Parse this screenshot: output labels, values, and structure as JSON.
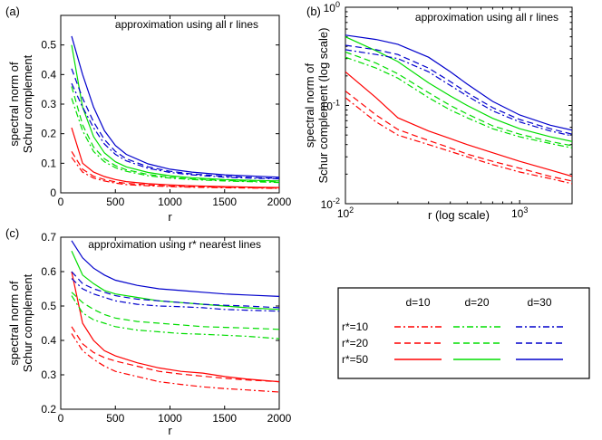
{
  "chart_data": [
    {
      "type": "line",
      "panel_label": "(a)",
      "title": "approximation using all r lines",
      "xlabel": "r",
      "ylabel": [
        "spectral norm of",
        "Schur complement"
      ],
      "xlim": [
        0,
        2000
      ],
      "ylim": [
        0,
        0.6
      ],
      "xscale": "linear",
      "yscale": "linear",
      "xticks": [
        0,
        500,
        1000,
        1500,
        2000
      ],
      "xtick_labels": [
        "0",
        "500",
        "1000",
        "1500",
        "2000"
      ],
      "yticks": [
        0,
        0.1,
        0.2,
        0.3,
        0.4,
        0.5
      ],
      "ytick_labels": [
        "0",
        "0.1",
        "0.2",
        "0.3",
        "0.4",
        "0.5"
      ],
      "x": [
        100,
        200,
        300,
        400,
        500,
        600,
        800,
        1000,
        1200,
        1500,
        1800,
        2000
      ],
      "series": [
        {
          "name": "d=10, r*=10",
          "color": "#ff0000",
          "dash": "dashdot",
          "values": [
            0.12,
            0.07,
            0.05,
            0.04,
            0.033,
            0.028,
            0.024,
            0.021,
            0.019,
            0.017,
            0.016,
            0.015
          ]
        },
        {
          "name": "d=10, r*=20",
          "color": "#ff0000",
          "dash": "dashed",
          "values": [
            0.14,
            0.08,
            0.056,
            0.045,
            0.037,
            0.032,
            0.027,
            0.023,
            0.021,
            0.019,
            0.017,
            0.016
          ]
        },
        {
          "name": "d=10, r*=50",
          "color": "#ff0000",
          "dash": "solid",
          "values": [
            0.22,
            0.1,
            0.07,
            0.055,
            0.045,
            0.038,
            0.031,
            0.027,
            0.024,
            0.021,
            0.019,
            0.018
          ]
        },
        {
          "name": "d=20, r*=10",
          "color": "#00dd00",
          "dash": "dashdot",
          "values": [
            0.32,
            0.21,
            0.14,
            0.105,
            0.085,
            0.073,
            0.058,
            0.05,
            0.045,
            0.04,
            0.037,
            0.035
          ]
        },
        {
          "name": "d=20, r*=20",
          "color": "#00dd00",
          "dash": "dashed",
          "values": [
            0.36,
            0.23,
            0.155,
            0.115,
            0.092,
            0.078,
            0.062,
            0.053,
            0.047,
            0.042,
            0.039,
            0.037
          ]
        },
        {
          "name": "d=20, r*=50",
          "color": "#00dd00",
          "dash": "solid",
          "values": [
            0.5,
            0.29,
            0.19,
            0.135,
            0.105,
            0.088,
            0.069,
            0.058,
            0.051,
            0.045,
            0.042,
            0.04
          ]
        },
        {
          "name": "d=30, r*=10",
          "color": "#0000cc",
          "dash": "dashdot",
          "values": [
            0.37,
            0.29,
            0.22,
            0.165,
            0.13,
            0.108,
            0.083,
            0.069,
            0.061,
            0.053,
            0.049,
            0.047
          ]
        },
        {
          "name": "d=30, r*=20",
          "color": "#0000cc",
          "dash": "dashed",
          "values": [
            0.42,
            0.32,
            0.24,
            0.18,
            0.14,
            0.115,
            0.088,
            0.073,
            0.064,
            0.056,
            0.051,
            0.049
          ]
        },
        {
          "name": "d=30, r*=50",
          "color": "#0000cc",
          "dash": "solid",
          "values": [
            0.53,
            0.4,
            0.29,
            0.21,
            0.16,
            0.13,
            0.098,
            0.08,
            0.07,
            0.061,
            0.056,
            0.053
          ]
        }
      ]
    },
    {
      "type": "line",
      "panel_label": "(b)",
      "title": "approximation using all r lines",
      "xlabel": "r (log scale)",
      "ylabel": [
        "spectral norm of",
        "Schur complement (log scale)"
      ],
      "xlim": [
        100,
        2000
      ],
      "ylim": [
        0.01,
        1
      ],
      "xscale": "log",
      "yscale": "log",
      "xticks": [
        100,
        1000
      ],
      "xtick_labels": [
        [
          "10",
          "2"
        ],
        [
          "10",
          "3"
        ]
      ],
      "yticks": [
        0.01,
        0.1,
        1
      ],
      "ytick_labels": [
        [
          "10",
          "-2"
        ],
        [
          "10",
          "-1"
        ],
        [
          "10",
          "0"
        ]
      ],
      "x": [
        100,
        150,
        200,
        300,
        400,
        500,
        700,
        1000,
        1500,
        2000
      ],
      "series": [
        {
          "name": "d=10, r*=10",
          "color": "#ff0000",
          "dash": "dashdot",
          "values": [
            0.12,
            0.068,
            0.05,
            0.04,
            0.034,
            0.03,
            0.025,
            0.021,
            0.018,
            0.016
          ]
        },
        {
          "name": "d=10, r*=20",
          "color": "#ff0000",
          "dash": "dashed",
          "values": [
            0.14,
            0.08,
            0.057,
            0.044,
            0.037,
            0.032,
            0.027,
            0.023,
            0.019,
            0.017
          ]
        },
        {
          "name": "d=10, r*=50",
          "color": "#ff0000",
          "dash": "solid",
          "values": [
            0.22,
            0.12,
            0.075,
            0.055,
            0.046,
            0.04,
            0.033,
            0.027,
            0.022,
            0.019
          ]
        },
        {
          "name": "d=20, r*=10",
          "color": "#00dd00",
          "dash": "dashdot",
          "values": [
            0.31,
            0.24,
            0.19,
            0.12,
            0.09,
            0.075,
            0.058,
            0.048,
            0.041,
            0.037
          ]
        },
        {
          "name": "d=20, r*=20",
          "color": "#00dd00",
          "dash": "dashed",
          "values": [
            0.35,
            0.27,
            0.21,
            0.135,
            0.1,
            0.082,
            0.062,
            0.051,
            0.043,
            0.039
          ]
        },
        {
          "name": "d=20, r*=50",
          "color": "#00dd00",
          "dash": "solid",
          "values": [
            0.5,
            0.36,
            0.28,
            0.17,
            0.125,
            0.1,
            0.074,
            0.058,
            0.048,
            0.043
          ]
        },
        {
          "name": "d=30, r*=10",
          "color": "#0000cc",
          "dash": "dashdot",
          "values": [
            0.37,
            0.33,
            0.3,
            0.22,
            0.16,
            0.125,
            0.088,
            0.068,
            0.055,
            0.049
          ]
        },
        {
          "name": "d=30, r*=20",
          "color": "#0000cc",
          "dash": "dashed",
          "values": [
            0.41,
            0.37,
            0.33,
            0.24,
            0.175,
            0.135,
            0.095,
            0.072,
            0.058,
            0.051
          ]
        },
        {
          "name": "d=30, r*=50",
          "color": "#0000cc",
          "dash": "solid",
          "values": [
            0.52,
            0.47,
            0.42,
            0.31,
            0.22,
            0.165,
            0.11,
            0.08,
            0.063,
            0.056
          ]
        }
      ]
    },
    {
      "type": "line",
      "panel_label": "(c)",
      "title": "approximation using r* nearest lines",
      "xlabel": "r",
      "ylabel": [
        "spectral norm of",
        "Schur complement"
      ],
      "xlim": [
        0,
        2000
      ],
      "ylim": [
        0.2,
        0.7
      ],
      "xscale": "linear",
      "yscale": "linear",
      "xticks": [
        0,
        500,
        1000,
        1500,
        2000
      ],
      "xtick_labels": [
        "0",
        "500",
        "1000",
        "1500",
        "2000"
      ],
      "yticks": [
        0.2,
        0.3,
        0.4,
        0.5,
        0.6,
        0.7
      ],
      "ytick_labels": [
        "0.2",
        "0.3",
        "0.4",
        "0.5",
        "0.6",
        "0.7"
      ],
      "x": [
        100,
        200,
        300,
        400,
        500,
        700,
        900,
        1100,
        1300,
        1500,
        1700,
        2000
      ],
      "series": [
        {
          "name": "d=10, r*=10",
          "color": "#ff0000",
          "dash": "dashdot",
          "values": [
            0.42,
            0.37,
            0.345,
            0.325,
            0.31,
            0.295,
            0.28,
            0.272,
            0.265,
            0.26,
            0.256,
            0.25
          ]
        },
        {
          "name": "d=10, r*=20",
          "color": "#ff0000",
          "dash": "dashed",
          "values": [
            0.44,
            0.39,
            0.365,
            0.35,
            0.34,
            0.325,
            0.31,
            0.302,
            0.296,
            0.29,
            0.285,
            0.28
          ]
        },
        {
          "name": "d=10, r*=50",
          "color": "#ff0000",
          "dash": "solid",
          "values": [
            0.6,
            0.45,
            0.4,
            0.37,
            0.355,
            0.335,
            0.32,
            0.31,
            0.305,
            0.295,
            0.288,
            0.28
          ]
        },
        {
          "name": "d=20, r*=10",
          "color": "#00dd00",
          "dash": "dashdot",
          "values": [
            0.53,
            0.48,
            0.46,
            0.45,
            0.44,
            0.43,
            0.425,
            0.42,
            0.418,
            0.415,
            0.412,
            0.405
          ]
        },
        {
          "name": "d=20, r*=20",
          "color": "#00dd00",
          "dash": "dashed",
          "values": [
            0.54,
            0.51,
            0.49,
            0.475,
            0.465,
            0.455,
            0.45,
            0.445,
            0.44,
            0.438,
            0.436,
            0.432
          ]
        },
        {
          "name": "d=20, r*=50",
          "color": "#00dd00",
          "dash": "solid",
          "values": [
            0.66,
            0.59,
            0.565,
            0.545,
            0.535,
            0.525,
            0.515,
            0.51,
            0.505,
            0.5,
            0.495,
            0.49
          ]
        },
        {
          "name": "d=30, r*=10",
          "color": "#0000cc",
          "dash": "dashdot",
          "values": [
            0.58,
            0.55,
            0.535,
            0.525,
            0.515,
            0.505,
            0.5,
            0.498,
            0.495,
            0.49,
            0.488,
            0.485
          ]
        },
        {
          "name": "d=30, r*=20",
          "color": "#0000cc",
          "dash": "dashed",
          "values": [
            0.6,
            0.565,
            0.55,
            0.54,
            0.53,
            0.52,
            0.515,
            0.51,
            0.505,
            0.502,
            0.5,
            0.495
          ]
        },
        {
          "name": "d=30, r*=50",
          "color": "#0000cc",
          "dash": "solid",
          "values": [
            0.69,
            0.64,
            0.61,
            0.59,
            0.575,
            0.56,
            0.55,
            0.545,
            0.54,
            0.535,
            0.532,
            0.528
          ]
        }
      ]
    }
  ],
  "legend": {
    "column_headers": [
      "d=10",
      "d=20",
      "d=30"
    ],
    "row_labels": [
      "r*=10",
      "r*=20",
      "r*=50"
    ],
    "row_dashes": [
      "dashdot",
      "dashed",
      "solid"
    ],
    "column_colors": [
      "#ff0000",
      "#00dd00",
      "#0000cc"
    ]
  }
}
